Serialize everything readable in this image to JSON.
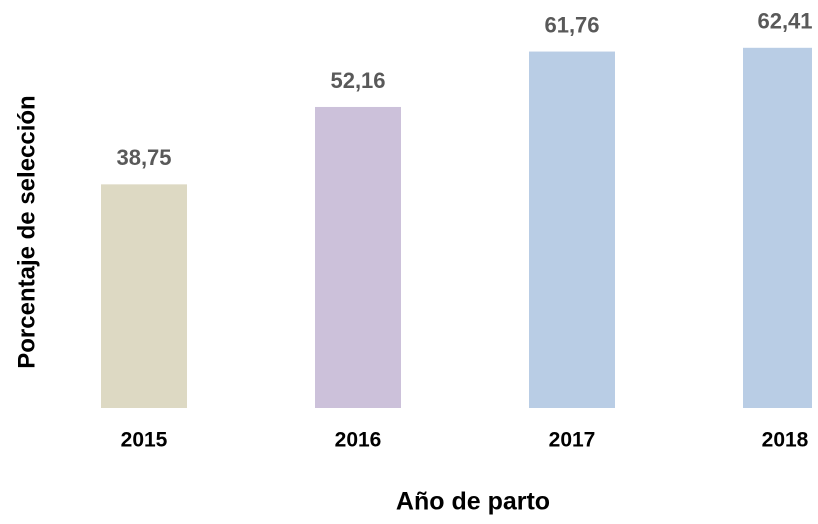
{
  "chart_data": {
    "type": "bar",
    "x_label": "Año de parto",
    "y_label": "Porcentaje de selección",
    "categories": [
      "2015",
      "2016",
      "2017",
      "2018"
    ],
    "values": [
      38.75,
      52.16,
      61.76,
      62.41
    ],
    "value_labels": [
      "38,75",
      "52,16",
      "61,76",
      "62,41"
    ],
    "colors": [
      "#ddd9c3",
      "#ccc1da",
      "#b9cde5",
      "#b9cde5"
    ],
    "ylim": [
      0,
      70
    ]
  }
}
